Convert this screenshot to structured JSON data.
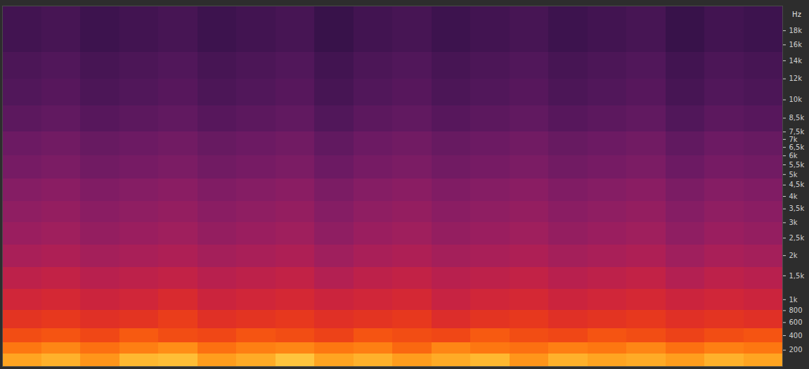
{
  "chart_data": {
    "type": "heatmap",
    "y_label": "Hz",
    "tick_labels": "y",
    "xlim": [
      0,
      20
    ],
    "ylim": [
      0,
      22050
    ],
    "x_bins": [
      0,
      1,
      2,
      3,
      4,
      5,
      6,
      7,
      8,
      9,
      10,
      11,
      12,
      13,
      14,
      15,
      16,
      17,
      18,
      19,
      20
    ],
    "y_bins": [
      0,
      150,
      300,
      500,
      800,
      1200,
      1700,
      2300,
      3000,
      3800,
      4800,
      6000,
      7500,
      9500,
      12000,
      15000,
      22050
    ],
    "yticks": [
      200,
      400,
      600,
      800,
      {
        "value": 1000,
        "label": "1k"
      },
      {
        "value": 1500,
        "label": "1,5k"
      },
      {
        "value": 2000,
        "label": "2k"
      },
      {
        "value": 2500,
        "label": "2,5k"
      },
      {
        "value": 3000,
        "label": "3k"
      },
      {
        "value": 3500,
        "label": "3,5k"
      },
      {
        "value": 4000,
        "label": "4k"
      },
      {
        "value": 4500,
        "label": "4,5k"
      },
      {
        "value": 5000,
        "label": "5k"
      },
      {
        "value": 5500,
        "label": "5,5k"
      },
      {
        "value": 6000,
        "label": "6k"
      },
      {
        "value": 6500,
        "label": "6,5k"
      },
      {
        "value": 7000,
        "label": "7k"
      },
      {
        "value": 7500,
        "label": "7,5k"
      },
      {
        "value": 8500,
        "label": "8,5k"
      },
      {
        "value": 10000,
        "label": "10k"
      },
      {
        "value": 12000,
        "label": "12k"
      },
      {
        "value": 14000,
        "label": "14k"
      },
      {
        "value": 16000,
        "label": "16k"
      },
      {
        "value": 18000,
        "label": "18k"
      }
    ],
    "clim": [
      -100,
      -30
    ],
    "cells": [
      [
        -40,
        -38,
        -42,
        -37,
        -36,
        -41,
        -39,
        -35,
        -40,
        -38,
        -41,
        -39,
        -37,
        -42,
        -38,
        -40,
        -39,
        -41,
        -38,
        -40
      ],
      [
        -46,
        -44,
        -47,
        -45,
        -43,
        -47,
        -45,
        -44,
        -46,
        -45,
        -48,
        -44,
        -46,
        -47,
        -45,
        -46,
        -44,
        -47,
        -45,
        -46
      ],
      [
        -52,
        -51,
        -53,
        -50,
        -52,
        -53,
        -51,
        -52,
        -54,
        -51,
        -52,
        -53,
        -50,
        -52,
        -53,
        -51,
        -52,
        -54,
        -52,
        -51
      ],
      [
        -57,
        -56,
        -58,
        -57,
        -55,
        -58,
        -57,
        -56,
        -58,
        -57,
        -56,
        -59,
        -57,
        -56,
        -58,
        -57,
        -56,
        -58,
        -57,
        -58
      ],
      [
        -62,
        -61,
        -63,
        -62,
        -60,
        -63,
        -62,
        -61,
        -63,
        -62,
        -61,
        -64,
        -62,
        -61,
        -63,
        -62,
        -61,
        -63,
        -62,
        -63
      ],
      [
        -66,
        -65,
        -67,
        -66,
        -65,
        -67,
        -66,
        -65,
        -68,
        -66,
        -65,
        -67,
        -66,
        -65,
        -67,
        -66,
        -65,
        -68,
        -66,
        -67
      ],
      [
        -70,
        -69,
        -71,
        -70,
        -69,
        -71,
        -70,
        -69,
        -72,
        -70,
        -69,
        -71,
        -70,
        -69,
        -71,
        -70,
        -69,
        -72,
        -70,
        -71
      ],
      [
        -73,
        -72,
        -74,
        -73,
        -72,
        -74,
        -73,
        -72,
        -75,
        -73,
        -72,
        -74,
        -73,
        -72,
        -74,
        -73,
        -72,
        -75,
        -73,
        -74
      ],
      [
        -75,
        -74,
        -76,
        -75,
        -74,
        -76,
        -75,
        -74,
        -77,
        -75,
        -74,
        -76,
        -75,
        -74,
        -76,
        -75,
        -74,
        -77,
        -75,
        -76
      ],
      [
        -77,
        -76,
        -78,
        -77,
        -76,
        -78,
        -77,
        -76,
        -79,
        -77,
        -76,
        -78,
        -77,
        -76,
        -78,
        -77,
        -76,
        -79,
        -77,
        -78
      ],
      [
        -80,
        -79,
        -81,
        -80,
        -79,
        -81,
        -80,
        -79,
        -82,
        -80,
        -79,
        -81,
        -80,
        -79,
        -81,
        -80,
        -79,
        -82,
        -80,
        -81
      ],
      [
        -82,
        -81,
        -83,
        -82,
        -81,
        -83,
        -82,
        -81,
        -84,
        -82,
        -81,
        -83,
        -82,
        -81,
        -83,
        -82,
        -81,
        -84,
        -82,
        -83
      ],
      [
        -85,
        -84,
        -86,
        -85,
        -84,
        -86,
        -85,
        -84,
        -87,
        -85,
        -84,
        -86,
        -85,
        -84,
        -86,
        -85,
        -84,
        -87,
        -85,
        -86
      ],
      [
        -87,
        -86,
        -88,
        -87,
        -86,
        -88,
        -87,
        -86,
        -89,
        -87,
        -86,
        -88,
        -87,
        -86,
        -88,
        -87,
        -86,
        -89,
        -87,
        -88
      ],
      [
        -88,
        -87,
        -89,
        -88,
        -87,
        -89,
        -88,
        -87,
        -90,
        -88,
        -87,
        -89,
        -88,
        -87,
        -89,
        -88,
        -87,
        -90,
        -88,
        -89
      ],
      [
        -90,
        -89,
        -91,
        -90,
        -89,
        -91,
        -90,
        -89,
        -92,
        -90,
        -89,
        -91,
        -90,
        -89,
        -91,
        -90,
        -89,
        -92,
        -90,
        -91
      ]
    ]
  }
}
